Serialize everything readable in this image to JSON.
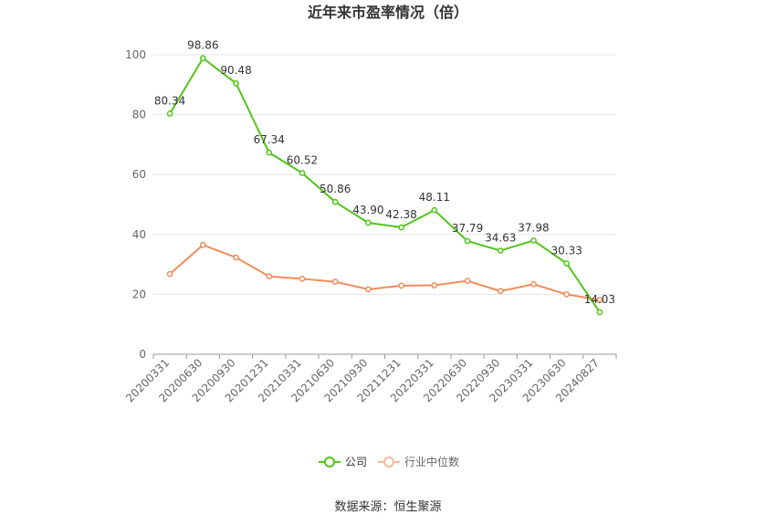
{
  "chart_data": {
    "type": "line",
    "title": "近年来市盈率情况（倍）",
    "categories": [
      "20200331",
      "20200630",
      "20200930",
      "20201231",
      "20210331",
      "20210630",
      "20210930",
      "20211231",
      "20220331",
      "20220630",
      "20220930",
      "20230331",
      "20230630",
      "20240827"
    ],
    "series": [
      {
        "name": "公司",
        "color": "#52c41a",
        "values": [
          80.34,
          98.86,
          90.48,
          67.34,
          60.52,
          50.86,
          43.9,
          42.38,
          48.11,
          37.79,
          34.63,
          37.98,
          30.33,
          14.03
        ],
        "labels": [
          "80.34",
          "98.86",
          "90.48",
          "67.34",
          "60.52",
          "50.86",
          "43.90",
          "42.38",
          "48.11",
          "37.79",
          "34.63",
          "37.98",
          "30.33",
          "14.03"
        ]
      },
      {
        "name": "行业中位数",
        "color": "#f08c5a",
        "values": [
          26.8,
          36.5,
          32.3,
          26.0,
          25.2,
          24.2,
          21.7,
          22.9,
          23.0,
          24.5,
          21.1,
          23.4,
          20.0,
          18.1
        ]
      }
    ],
    "ylim": [
      0,
      100
    ],
    "yticks": [
      "0",
      "20",
      "40",
      "60",
      "80",
      "100"
    ],
    "grid": true,
    "legend_position": "bottom"
  },
  "source": "数据来源：恒生聚源"
}
